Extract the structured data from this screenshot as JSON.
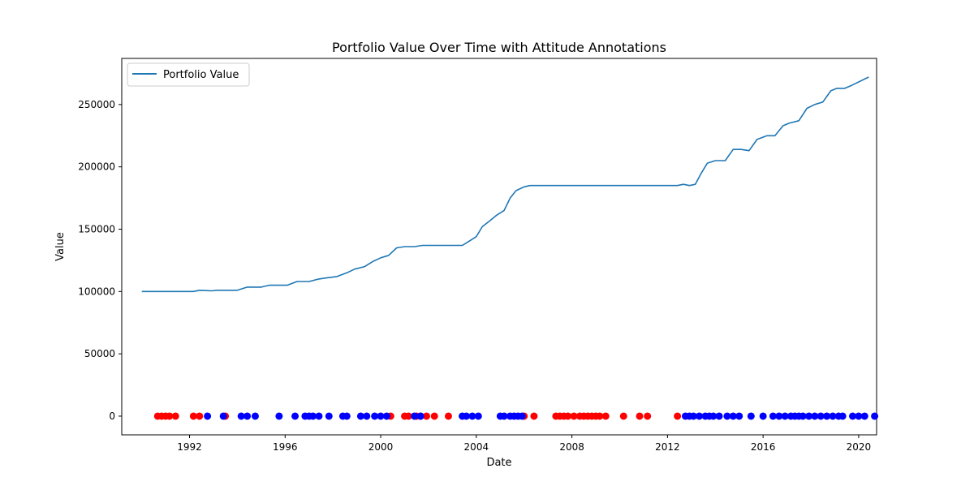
{
  "chart_data": {
    "type": "line",
    "title": "Portfolio Value Over Time with Attitude Annotations",
    "xlabel": "Date",
    "ylabel": "Value",
    "xlim": [
      "1989-03-01",
      "2020-10-01"
    ],
    "ylim": [
      -15000,
      287000
    ],
    "x_ticks": [
      "1992",
      "1996",
      "2000",
      "2004",
      "2008",
      "2012",
      "2016",
      "2020"
    ],
    "y_ticks": [
      "0",
      "50000",
      "100000",
      "150000",
      "200000",
      "250000"
    ],
    "legend": {
      "position": "top-left",
      "entries": [
        "Portfolio Value"
      ]
    },
    "grid": false,
    "colors": {
      "line": "#1f77b4",
      "negative": "#ff0000",
      "positive": "#0000ff"
    },
    "series": [
      {
        "name": "Portfolio Value",
        "points": [
          [
            "1990-01-01",
            100000
          ],
          [
            "1990-06-01",
            100000
          ],
          [
            "1991-01-01",
            100000
          ],
          [
            "1991-06-01",
            100000
          ],
          [
            "1992-01-01",
            100000
          ],
          [
            "1992-03-01",
            100000
          ],
          [
            "1992-06-01",
            101000
          ],
          [
            "1992-12-01",
            100500
          ],
          [
            "1993-03-01",
            101000
          ],
          [
            "1993-09-01",
            101000
          ],
          [
            "1994-01-01",
            101000
          ],
          [
            "1994-03-01",
            102000
          ],
          [
            "1994-06-01",
            103500
          ],
          [
            "1994-09-01",
            103500
          ],
          [
            "1995-01-01",
            103500
          ],
          [
            "1995-05-01",
            105000
          ],
          [
            "1995-09-01",
            105000
          ],
          [
            "1996-02-01",
            105000
          ],
          [
            "1996-07-01",
            108000
          ],
          [
            "1997-01-01",
            108000
          ],
          [
            "1997-06-01",
            110000
          ],
          [
            "1997-10-01",
            111000
          ],
          [
            "1998-03-01",
            112000
          ],
          [
            "1998-08-01",
            115000
          ],
          [
            "1998-12-01",
            118000
          ],
          [
            "1999-05-01",
            120000
          ],
          [
            "1999-09-01",
            124000
          ],
          [
            "2000-01-01",
            127000
          ],
          [
            "2000-05-01",
            129000
          ],
          [
            "2000-09-01",
            135000
          ],
          [
            "2001-01-01",
            136000
          ],
          [
            "2001-06-01",
            136000
          ],
          [
            "2001-10-01",
            137000
          ],
          [
            "2002-06-01",
            137000
          ],
          [
            "2003-01-01",
            137000
          ],
          [
            "2003-06-01",
            137000
          ],
          [
            "2003-09-01",
            140000
          ],
          [
            "2004-01-01",
            144000
          ],
          [
            "2004-04-01",
            152000
          ],
          [
            "2004-08-01",
            157000
          ],
          [
            "2004-11-01",
            161000
          ],
          [
            "2005-03-01",
            165000
          ],
          [
            "2005-06-01",
            175000
          ],
          [
            "2005-09-01",
            181000
          ],
          [
            "2006-01-01",
            184000
          ],
          [
            "2006-04-01",
            185000
          ],
          [
            "2007-01-01",
            185000
          ],
          [
            "2008-06-01",
            185000
          ],
          [
            "2010-01-01",
            185000
          ],
          [
            "2011-06-01",
            185000
          ],
          [
            "2012-06-01",
            185000
          ],
          [
            "2012-09-01",
            186000
          ],
          [
            "2012-12-01",
            185000
          ],
          [
            "2013-03-01",
            186000
          ],
          [
            "2013-06-01",
            195000
          ],
          [
            "2013-09-01",
            203000
          ],
          [
            "2014-01-01",
            205000
          ],
          [
            "2014-06-01",
            205000
          ],
          [
            "2014-10-01",
            214000
          ],
          [
            "2015-02-01",
            214000
          ],
          [
            "2015-06-01",
            213000
          ],
          [
            "2015-10-01",
            222000
          ],
          [
            "2016-03-01",
            225000
          ],
          [
            "2016-07-01",
            225000
          ],
          [
            "2016-11-01",
            233000
          ],
          [
            "2017-02-01",
            235000
          ],
          [
            "2017-07-01",
            237000
          ],
          [
            "2017-11-01",
            247000
          ],
          [
            "2018-03-01",
            250000
          ],
          [
            "2018-07-01",
            252000
          ],
          [
            "2018-11-01",
            261000
          ],
          [
            "2019-02-01",
            263000
          ],
          [
            "2019-06-01",
            263000
          ],
          [
            "2019-09-01",
            265000
          ],
          [
            "2020-06-01",
            272000
          ]
        ]
      }
    ],
    "annotations": {
      "y_value": 0,
      "negative_dates": [
        "1990-09-01",
        "1990-11-01",
        "1991-01-01",
        "1991-03-01",
        "1991-06-01",
        "1992-03-01",
        "1992-06-01",
        "1993-07-01",
        "2000-06-01",
        "2001-01-01",
        "2001-03-01",
        "2001-07-01",
        "2001-09-01",
        "2001-12-01",
        "2002-04-01",
        "2002-11-01",
        "2006-01-01",
        "2006-06-01",
        "2007-05-01",
        "2007-07-01",
        "2007-09-01",
        "2007-11-01",
        "2008-02-01",
        "2008-05-01",
        "2008-07-01",
        "2008-09-01",
        "2008-11-01",
        "2009-01-01",
        "2009-03-01",
        "2009-06-01",
        "2010-03-01",
        "2010-11-01",
        "2011-03-01",
        "2012-06-01"
      ],
      "positive_dates": [
        "1992-10-01",
        "1993-06-01",
        "1994-03-01",
        "1994-06-01",
        "1994-10-01",
        "1995-10-01",
        "1996-06-01",
        "1996-11-01",
        "1997-01-01",
        "1997-03-01",
        "1997-06-01",
        "1997-11-01",
        "1998-06-01",
        "1998-08-01",
        "1999-03-01",
        "1999-06-01",
        "1999-10-01",
        "2000-01-01",
        "2000-04-01",
        "2001-06-01",
        "2001-09-01",
        "2003-06-01",
        "2003-08-01",
        "2003-11-01",
        "2004-02-01",
        "2005-01-01",
        "2005-03-01",
        "2005-06-01",
        "2005-08-01",
        "2005-10-01",
        "2005-12-01",
        "2012-10-01",
        "2012-12-01",
        "2013-02-01",
        "2013-05-01",
        "2013-08-01",
        "2013-10-01",
        "2013-12-01",
        "2014-03-01",
        "2014-07-01",
        "2014-10-01",
        "2015-01-01",
        "2015-07-01",
        "2016-01-01",
        "2016-06-01",
        "2016-09-01",
        "2016-12-01",
        "2017-03-01",
        "2017-05-01",
        "2017-07-01",
        "2017-09-01",
        "2017-12-01",
        "2018-03-01",
        "2018-06-01",
        "2018-09-01",
        "2018-12-01",
        "2019-03-01",
        "2019-05-01",
        "2019-10-01",
        "2020-01-01",
        "2020-04-01",
        "2020-09-01"
      ]
    }
  }
}
